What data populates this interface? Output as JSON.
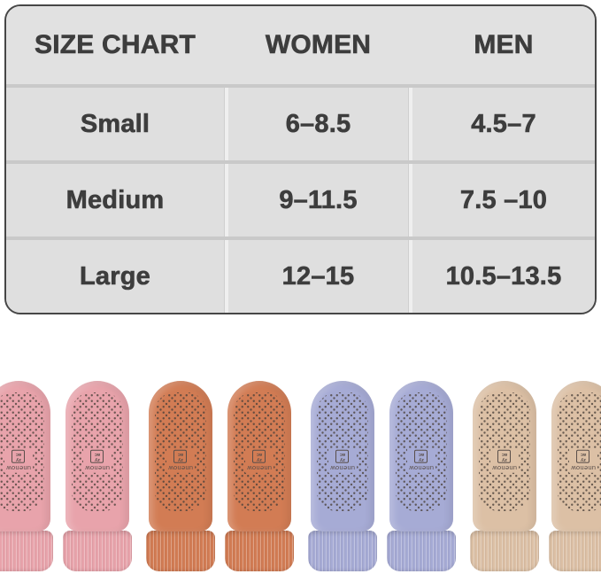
{
  "table": {
    "headers": [
      "SIZE CHART",
      "WOMEN",
      "MEN"
    ],
    "rows": [
      {
        "size": "Small",
        "women": "6–8.5",
        "men": "4.5–7"
      },
      {
        "size": "Medium",
        "women": "9–11.5",
        "men": "7.5 –10"
      },
      {
        "size": "Large",
        "women": "12–15",
        "men": "10.5–13.5"
      }
    ],
    "colors": {
      "border": "#464646",
      "header_bg": "#e1e1e1",
      "row_bg": "#dfdfdf",
      "text": "#3d3d3d"
    }
  },
  "socks": {
    "brand_label": "unenow",
    "logo_mark_rows": [
      "zy",
      "ac"
    ],
    "dot_color": "#4a403a",
    "pairs": [
      {
        "color_name": "pink",
        "hex": "#e8a3ab"
      },
      {
        "color_name": "rust-orange",
        "hex": "#d27c54"
      },
      {
        "color_name": "lavender",
        "hex": "#a6abd5"
      },
      {
        "color_name": "beige",
        "hex": "#dcc0a5"
      }
    ]
  }
}
